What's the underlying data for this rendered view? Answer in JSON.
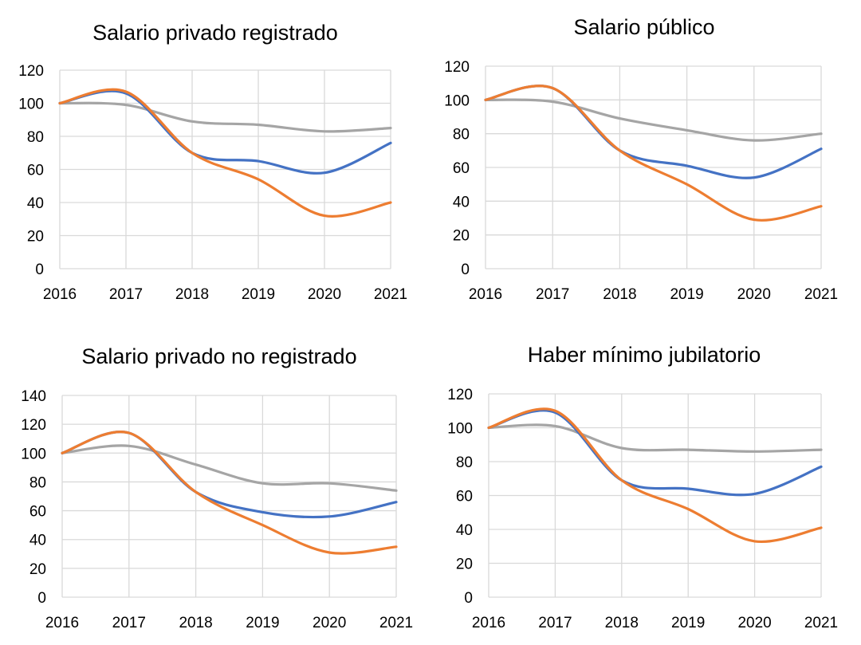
{
  "colors": {
    "blue": "#4472c4",
    "orange": "#ed7d31",
    "gray": "#a5a5a5",
    "grid": "#d9d9d9"
  },
  "chart_data": [
    {
      "type": "line",
      "title": "Salario privado registrado",
      "x": [
        2016,
        2017,
        2018,
        2019,
        2020,
        2021
      ],
      "xticks": [
        "2016",
        "2017",
        "2018",
        "2019",
        "2020",
        "2021"
      ],
      "ylim": [
        0,
        120
      ],
      "yticks": [
        "0",
        "20",
        "40",
        "60",
        "80",
        "100",
        "120"
      ],
      "grid": true,
      "series": [
        {
          "color": "blue",
          "values": [
            100,
            106,
            70,
            65,
            58,
            76
          ]
        },
        {
          "color": "orange",
          "values": [
            100,
            107,
            70,
            54,
            32,
            40
          ]
        },
        {
          "color": "gray",
          "values": [
            100,
            99,
            89,
            87,
            83,
            85
          ]
        }
      ]
    },
    {
      "type": "line",
      "title": "Salario público",
      "x": [
        2016,
        2017,
        2018,
        2019,
        2020,
        2021
      ],
      "xticks": [
        "2016",
        "2017",
        "2018",
        "2019",
        "2020",
        "2021"
      ],
      "ylim": [
        0,
        120
      ],
      "yticks": [
        "0",
        "20",
        "40",
        "60",
        "80",
        "100",
        "120"
      ],
      "grid": true,
      "series": [
        {
          "color": "blue",
          "values": [
            100,
            107,
            70,
            61,
            54,
            71
          ]
        },
        {
          "color": "orange",
          "values": [
            100,
            107,
            70,
            50,
            29,
            37
          ]
        },
        {
          "color": "gray",
          "values": [
            100,
            99,
            89,
            82,
            76,
            80
          ]
        }
      ]
    },
    {
      "type": "line",
      "title": "Salario privado no registrado",
      "x": [
        2016,
        2017,
        2018,
        2019,
        2020,
        2021
      ],
      "xticks": [
        "2016",
        "2017",
        "2018",
        "2019",
        "2020",
        "2021"
      ],
      "ylim": [
        0,
        140
      ],
      "yticks": [
        "0",
        "20",
        "40",
        "60",
        "80",
        "100",
        "120",
        "140"
      ],
      "grid": true,
      "series": [
        {
          "color": "blue",
          "values": [
            100,
            114,
            73,
            59,
            56,
            66
          ]
        },
        {
          "color": "orange",
          "values": [
            100,
            114,
            73,
            50,
            31,
            35
          ]
        },
        {
          "color": "gray",
          "values": [
            100,
            105,
            92,
            79,
            79,
            74
          ]
        }
      ]
    },
    {
      "type": "line",
      "title": "Haber mínimo jubilatorio",
      "x": [
        2016,
        2017,
        2018,
        2019,
        2020,
        2021
      ],
      "xticks": [
        "2016",
        "2017",
        "2018",
        "2019",
        "2020",
        "2021"
      ],
      "ylim": [
        0,
        120
      ],
      "yticks": [
        "0",
        "20",
        "40",
        "60",
        "80",
        "100",
        "120"
      ],
      "grid": true,
      "series": [
        {
          "color": "blue",
          "values": [
            100,
            109,
            69,
            64,
            61,
            77
          ]
        },
        {
          "color": "orange",
          "values": [
            100,
            110,
            69,
            52,
            33,
            41
          ]
        },
        {
          "color": "gray",
          "values": [
            100,
            101,
            88,
            87,
            86,
            87
          ]
        }
      ]
    }
  ]
}
